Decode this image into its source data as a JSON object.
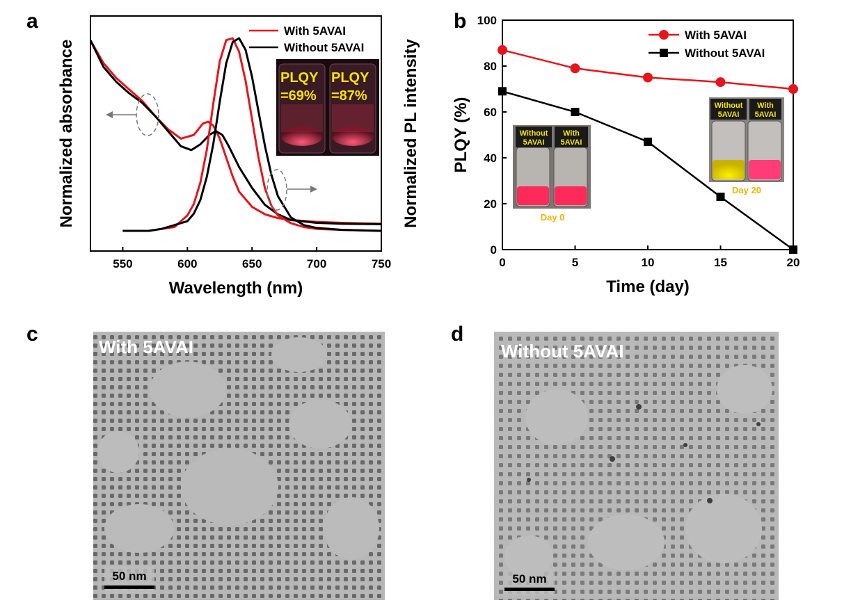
{
  "panels": {
    "a": {
      "letter": "a",
      "xlabel": "Wavelength (nm)",
      "ylabel_left": "Normalized absorbance",
      "ylabel_right": "Normalized PL intensity",
      "legend": [
        "With 5AVAI",
        "Without 5AVAI"
      ],
      "inset": {
        "left": "PLQY\n=69%",
        "right": "PLQY\n=87%",
        "left_l1": "PLQY",
        "left_l2": "=69%",
        "right_l1": "PLQY",
        "right_l2": "=87%"
      }
    },
    "b": {
      "letter": "b",
      "xlabel": "Time (day)",
      "ylabel": "PLQY (%)",
      "legend": [
        "With 5AVAI",
        "Without 5AVAI"
      ],
      "inset_day0": {
        "left": "Without\n5AVAI",
        "left_l1": "Without",
        "left_l2": "5AVAI",
        "right_l1": "With",
        "right_l2": "5AVAI",
        "day": "Day 0"
      },
      "inset_day20": {
        "left_l1": "Without",
        "left_l2": "5AVAI",
        "right_l1": "With",
        "right_l2": "5AVAI",
        "day": "Day 20"
      }
    },
    "c": {
      "letter": "c",
      "title": "With 5AVAI",
      "scale": "50 nm"
    },
    "d": {
      "letter": "d",
      "title": "Without 5AVAI",
      "scale": "50 nm"
    }
  },
  "chart_data": [
    {
      "type": "line",
      "panel": "a",
      "xlabel": "Wavelength (nm)",
      "ylabel": "Normalized absorbance",
      "ylabel_right": "Normalized PL intensity",
      "xlim": [
        525,
        750
      ],
      "x_ticks": [
        550,
        600,
        650,
        700,
        750
      ],
      "colors": {
        "With 5AVAI": "#e8141c",
        "Without 5AVAI": "#000000"
      },
      "series": [
        {
          "name": "With 5AVAI",
          "kind": "absorbance",
          "x": [
            525,
            535,
            545,
            555,
            565,
            575,
            585,
            595,
            605,
            612,
            616,
            620,
            625,
            630,
            635,
            640,
            650,
            660,
            670,
            680,
            700,
            720,
            750
          ],
          "y": [
            1.0,
            0.88,
            0.8,
            0.74,
            0.68,
            0.6,
            0.53,
            0.48,
            0.5,
            0.56,
            0.57,
            0.55,
            0.48,
            0.38,
            0.28,
            0.2,
            0.12,
            0.08,
            0.06,
            0.05,
            0.04,
            0.035,
            0.03
          ]
        },
        {
          "name": "Without 5AVAI",
          "kind": "absorbance",
          "x": [
            525,
            535,
            545,
            555,
            565,
            575,
            585,
            595,
            603,
            610,
            617,
            622,
            627,
            632,
            640,
            650,
            660,
            670,
            680,
            700,
            720,
            750
          ],
          "y": [
            1.0,
            0.86,
            0.78,
            0.72,
            0.67,
            0.6,
            0.52,
            0.44,
            0.42,
            0.45,
            0.5,
            0.52,
            0.5,
            0.44,
            0.33,
            0.22,
            0.13,
            0.08,
            0.05,
            0.035,
            0.03,
            0.028
          ]
        },
        {
          "name": "With 5AVAI",
          "kind": "PL",
          "x": [
            550,
            570,
            580,
            590,
            600,
            605,
            610,
            615,
            620,
            625,
            630,
            635,
            640,
            645,
            650,
            655,
            660,
            665,
            670,
            680,
            690,
            700,
            720,
            750
          ],
          "y": [
            0.0,
            0.0,
            0.01,
            0.02,
            0.08,
            0.14,
            0.25,
            0.42,
            0.66,
            0.88,
            0.99,
            1.0,
            0.93,
            0.78,
            0.58,
            0.38,
            0.22,
            0.13,
            0.08,
            0.04,
            0.02,
            0.01,
            0.005,
            0.0
          ]
        },
        {
          "name": "Without 5AVAI",
          "kind": "PL",
          "x": [
            550,
            570,
            580,
            590,
            600,
            605,
            610,
            615,
            620,
            625,
            630,
            635,
            640,
            645,
            650,
            655,
            660,
            665,
            670,
            680,
            690,
            700,
            720,
            750
          ],
          "y": [
            0.0,
            0.0,
            0.01,
            0.03,
            0.05,
            0.09,
            0.16,
            0.28,
            0.45,
            0.67,
            0.87,
            0.98,
            1.0,
            0.94,
            0.8,
            0.62,
            0.44,
            0.29,
            0.18,
            0.07,
            0.03,
            0.015,
            0.005,
            0.0
          ]
        }
      ]
    },
    {
      "type": "line",
      "panel": "b",
      "xlabel": "Time (day)",
      "ylabel": "PLQY (%)",
      "xlim": [
        0,
        20
      ],
      "ylim": [
        0,
        100
      ],
      "x_ticks": [
        0,
        5,
        10,
        15,
        20
      ],
      "y_ticks": [
        0,
        20,
        40,
        60,
        80,
        100
      ],
      "legend_position": "top-right",
      "colors": {
        "With 5AVAI": "#e8141c",
        "Without 5AVAI": "#000000"
      },
      "series": [
        {
          "name": "With 5AVAI",
          "marker": "circle",
          "x": [
            0,
            5,
            10,
            15,
            20
          ],
          "values": [
            87,
            79,
            75,
            73,
            70
          ]
        },
        {
          "name": "Without 5AVAI",
          "marker": "square",
          "x": [
            0,
            5,
            10,
            15,
            20
          ],
          "values": [
            69,
            60,
            47,
            23,
            0
          ]
        }
      ]
    }
  ]
}
